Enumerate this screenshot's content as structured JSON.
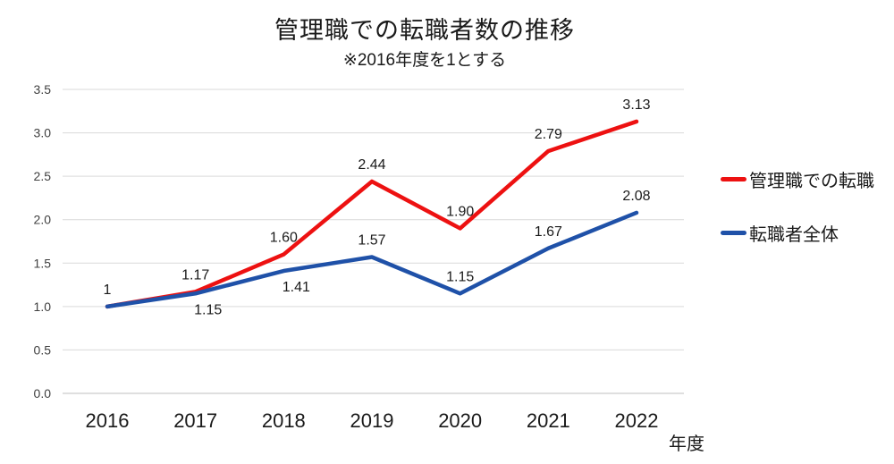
{
  "chart_data": {
    "type": "line",
    "title": "管理職での転職者数の推移",
    "subtitle": "※2016年度を1とする",
    "categories": [
      "2016",
      "2017",
      "2018",
      "2019",
      "2020",
      "2021",
      "2022"
    ],
    "series": [
      {
        "id": "management",
        "name": "管理職での転職",
        "color": "#ED1111",
        "values": [
          1,
          1.17,
          1.6,
          2.44,
          1.9,
          2.79,
          3.13
        ],
        "labels": [
          "1",
          "1.17",
          "1.60",
          "2.44",
          "1.90",
          "2.79",
          "3.13"
        ],
        "label_positions": [
          "above",
          "above",
          "above",
          "above",
          "above",
          "above",
          "above"
        ]
      },
      {
        "id": "overall",
        "name": "転職者全体",
        "color": "#1F51A8",
        "values": [
          1,
          1.15,
          1.41,
          1.57,
          1.15,
          1.67,
          2.08
        ],
        "labels": [
          "",
          "1.15",
          "1.41",
          "1.57",
          "1.15",
          "1.67",
          "2.08"
        ],
        "label_positions": [
          "none",
          "below-right",
          "below-right",
          "above",
          "above",
          "above",
          "above"
        ]
      }
    ],
    "xlabel": "年度",
    "ylabel": "",
    "ylim": [
      0.0,
      3.5
    ],
    "ytick_step": 0.5,
    "ytick_labels": [
      "0.0",
      "0.5",
      "1.0",
      "1.5",
      "2.0",
      "2.5",
      "3.0",
      "3.5"
    ],
    "grid": "horizontal",
    "gridline_color": "#D9D9D9",
    "axis_line_color": "#BFBFBF",
    "legend_position": "right",
    "text_color": "#1a1a1a",
    "tick_color": "#404040"
  }
}
